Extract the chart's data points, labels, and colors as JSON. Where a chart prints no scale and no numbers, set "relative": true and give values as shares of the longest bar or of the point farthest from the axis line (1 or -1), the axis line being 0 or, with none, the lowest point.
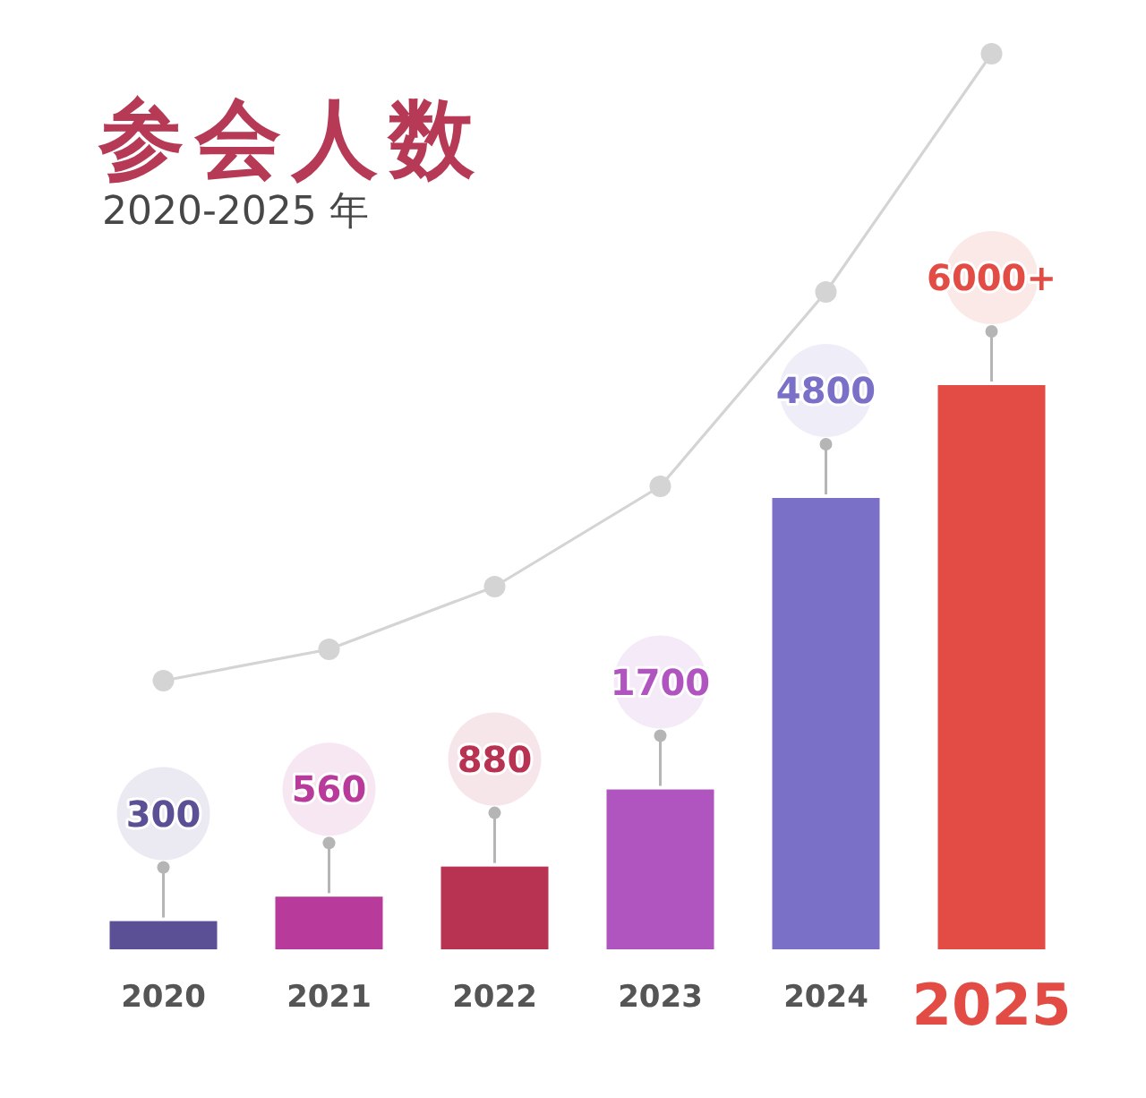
{
  "chart_data": [
    {
      "type": "bar",
      "title": "参会人数",
      "subtitle": "2020-2025 年",
      "categories": [
        "2020",
        "2021",
        "2022",
        "2023",
        "2024",
        "2025"
      ],
      "values": [
        300,
        560,
        880,
        1700,
        4800,
        6000
      ],
      "colors": [
        "#5b4f96",
        "#b83a9a",
        "#b83352",
        "#b055c0",
        "#7a70c8",
        "#e24c45"
      ],
      "value_labels": [
        "300",
        "560",
        "880",
        "1700",
        "4800",
        "6000+"
      ],
      "tick_labels": "x"
    },
    {
      "type": "line",
      "relative": true,
      "categories": [
        null,
        null,
        null,
        null,
        null,
        null
      ],
      "values": [
        0,
        0.05,
        0.15,
        0.31,
        0.62,
        1
      ],
      "color": "#d4d4d4",
      "marker": "circle"
    }
  ]
}
